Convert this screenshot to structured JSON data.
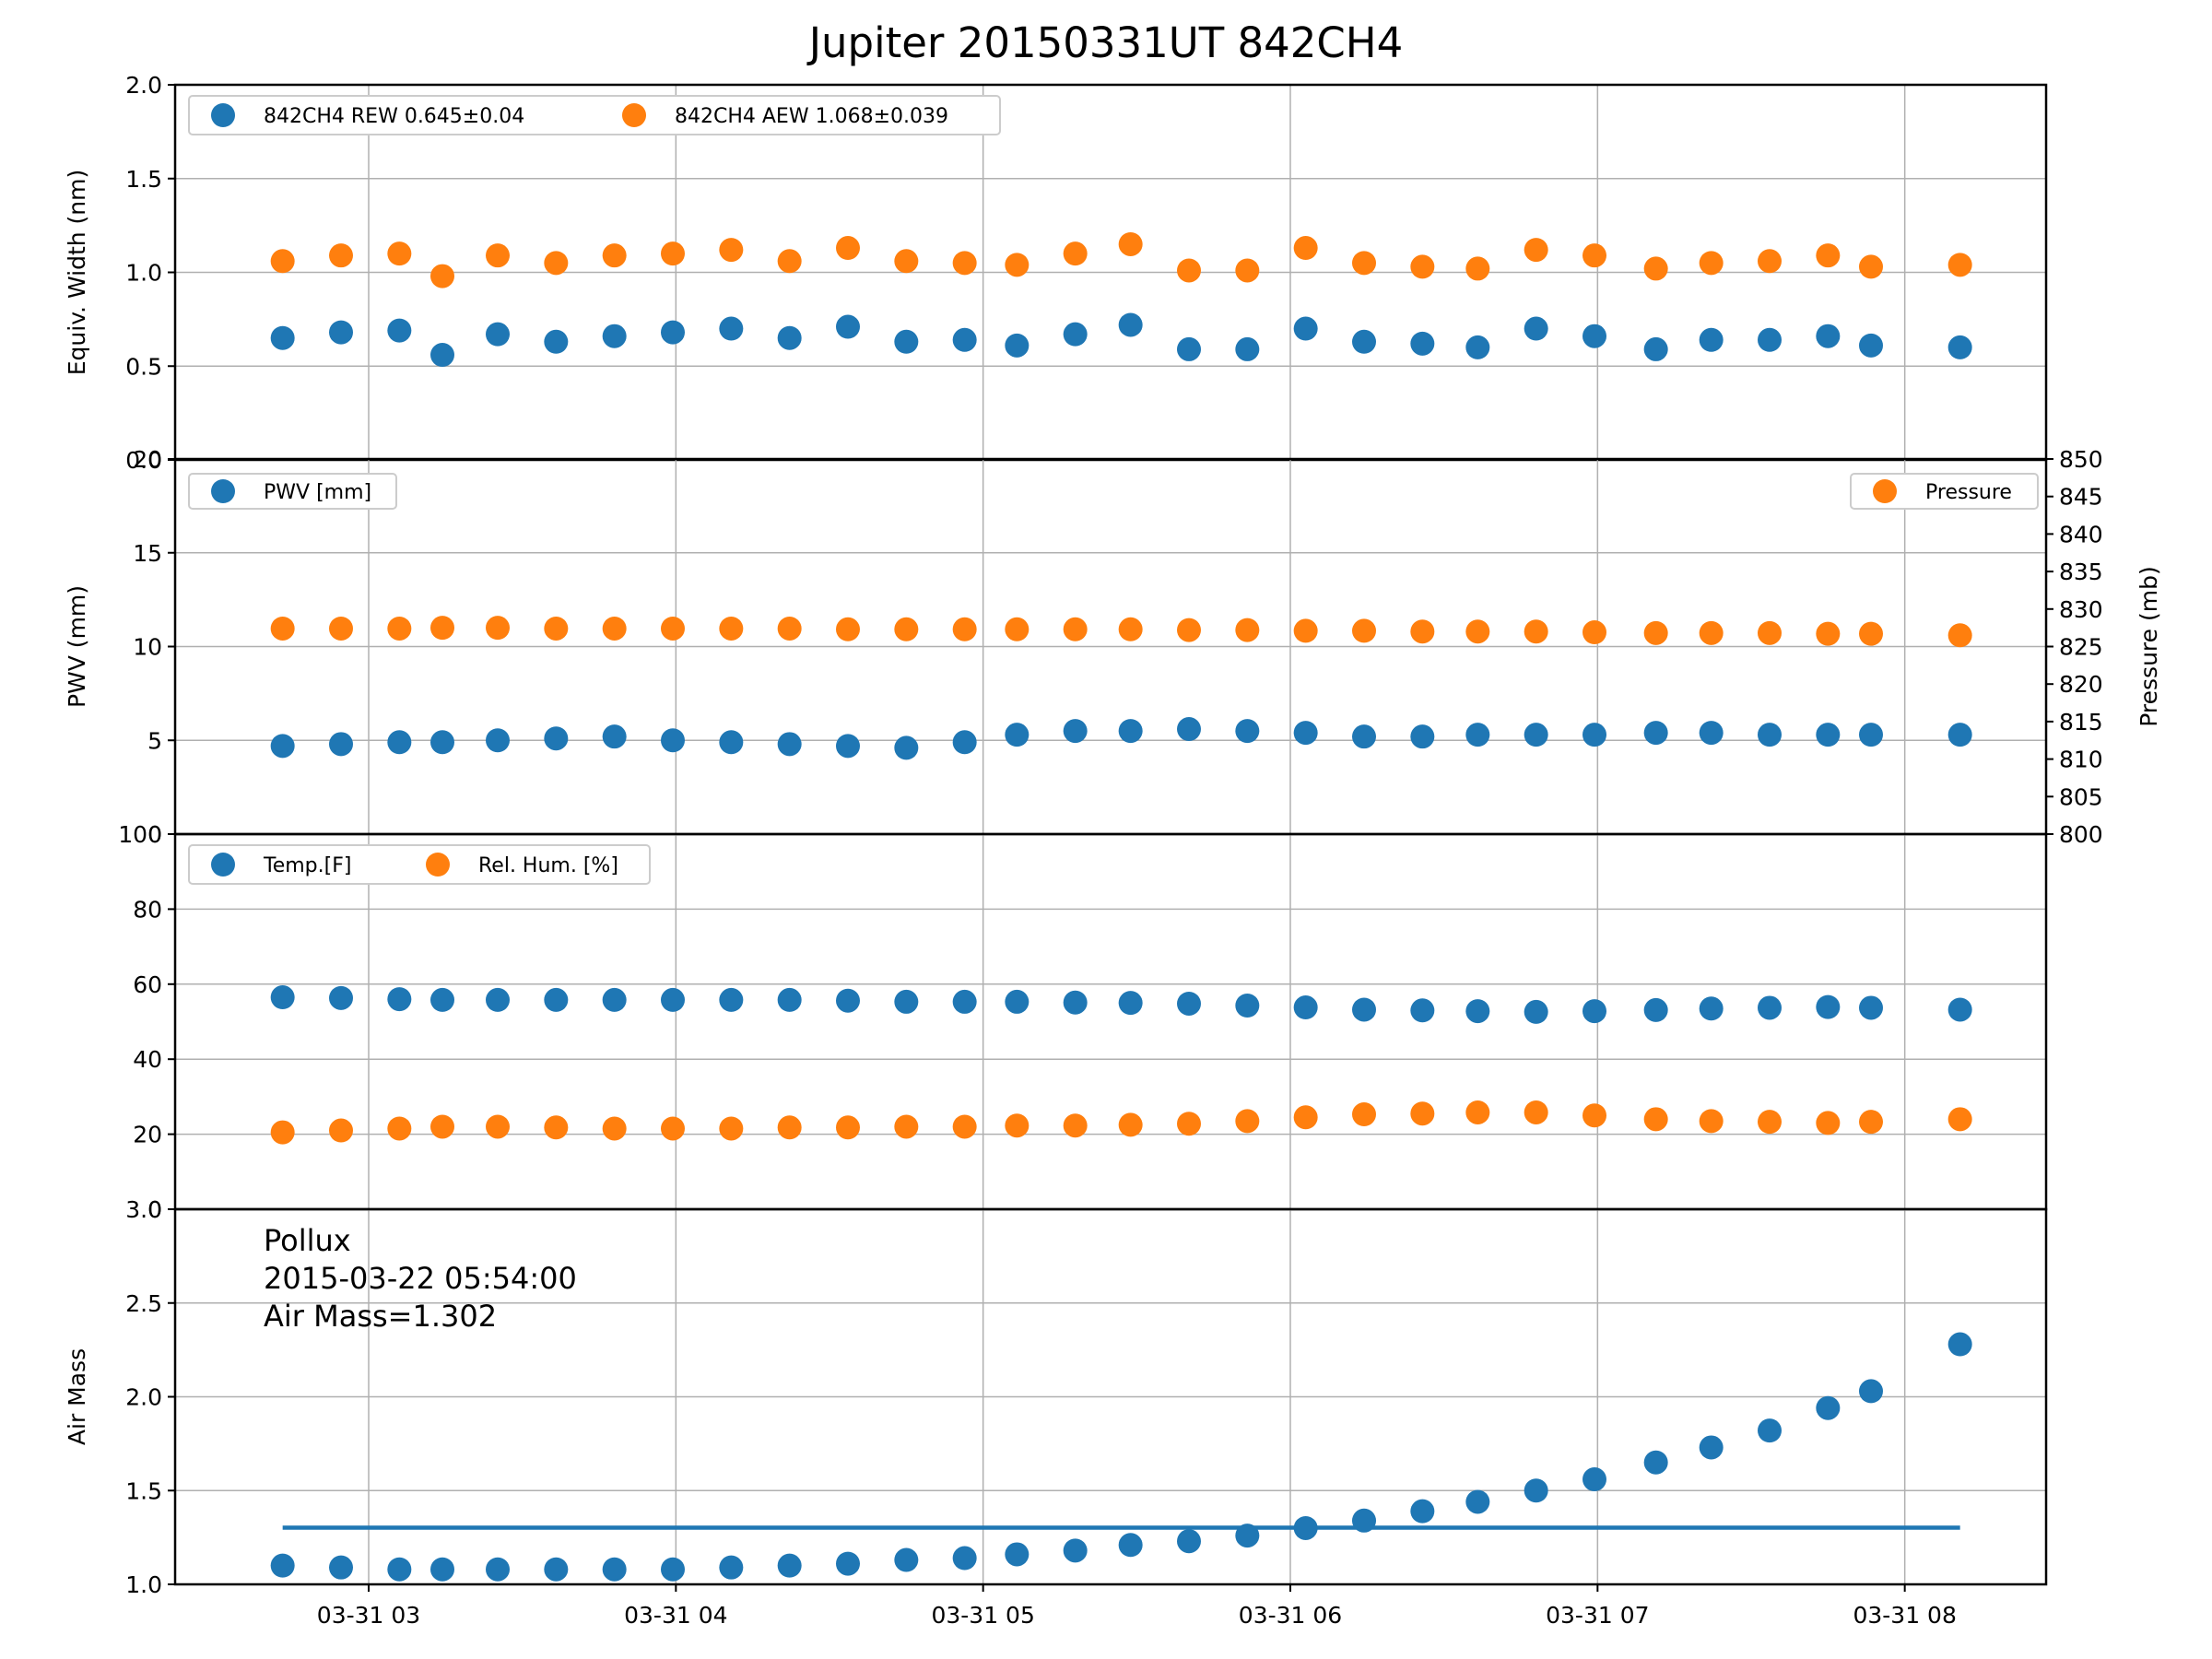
{
  "title": "Jupiter 20150331UT 842CH4",
  "colors": {
    "blue": "#1f77b4",
    "orange": "#ff7f0e"
  },
  "chart_data": {
    "type": "scatter",
    "x_ticks": [
      "03-31 03",
      "03-31 04",
      "03-31 05",
      "03-31 06",
      "03-31 07",
      "03-31 08"
    ],
    "x_hours": [
      2.72,
      2.91,
      3.1,
      3.24,
      3.42,
      3.61,
      3.8,
      3.99,
      4.18,
      4.37,
      4.56,
      4.75,
      4.94,
      5.11,
      5.3,
      5.48,
      5.67,
      5.86,
      6.05,
      6.24,
      6.43,
      6.61,
      6.8,
      6.99,
      7.19,
      7.37,
      7.56,
      7.75,
      7.89,
      8.18
    ],
    "x_range_hours": [
      2.37,
      8.46
    ],
    "panels": [
      {
        "ylabel": "Equiv. Width (nm)",
        "ylim": [
          0.0,
          2.0
        ],
        "yticks": [
          "0.0",
          "0.5",
          "1.0",
          "1.5",
          "2.0"
        ],
        "legend": "upper-left",
        "series": [
          {
            "name": "842CH4 REW 0.645±0.04",
            "color": "#1f77b4",
            "y": [
              0.65,
              0.68,
              0.69,
              0.56,
              0.67,
              0.63,
              0.66,
              0.68,
              0.7,
              0.65,
              0.71,
              0.63,
              0.64,
              0.61,
              0.67,
              0.72,
              0.59,
              0.59,
              0.7,
              0.63,
              0.62,
              0.6,
              0.7,
              0.66,
              0.59,
              0.64,
              0.64,
              0.66,
              0.61,
              0.6
            ]
          },
          {
            "name": "842CH4 AEW 1.068±0.039",
            "color": "#ff7f0e",
            "y": [
              1.06,
              1.09,
              1.1,
              0.98,
              1.09,
              1.05,
              1.09,
              1.1,
              1.12,
              1.06,
              1.13,
              1.06,
              1.05,
              1.04,
              1.1,
              1.15,
              1.01,
              1.01,
              1.13,
              1.05,
              1.03,
              1.02,
              1.12,
              1.09,
              1.02,
              1.05,
              1.06,
              1.09,
              1.03,
              1.04
            ]
          }
        ]
      },
      {
        "ylabel": "PWV (mm)",
        "ylim": [
          0,
          20
        ],
        "yticks": [
          "0",
          "5",
          "10",
          "15",
          "20"
        ],
        "y2label": "Pressure (mb)",
        "y2lim": [
          800,
          850
        ],
        "y2ticks": [
          "800",
          "805",
          "810",
          "815",
          "820",
          "825",
          "830",
          "835",
          "840",
          "845",
          "850"
        ],
        "legend": "upper-left / upper-right",
        "series": [
          {
            "name": "PWV [mm]",
            "color": "#1f77b4",
            "axis": "left",
            "y": [
              4.7,
              4.8,
              4.9,
              4.9,
              5.0,
              5.1,
              5.2,
              5.0,
              4.9,
              4.8,
              4.7,
              4.6,
              4.9,
              5.3,
              5.5,
              5.5,
              5.6,
              5.5,
              5.4,
              5.2,
              5.2,
              5.3,
              5.3,
              5.3,
              5.4,
              5.4,
              5.3,
              5.3,
              5.3,
              5.3
            ]
          },
          {
            "name": "Pressure",
            "color": "#ff7f0e",
            "axis": "right",
            "y": [
              827.4,
              827.4,
              827.4,
              827.5,
              827.5,
              827.4,
              827.4,
              827.4,
              827.4,
              827.4,
              827.3,
              827.3,
              827.3,
              827.3,
              827.3,
              827.3,
              827.2,
              827.2,
              827.1,
              827.1,
              827.0,
              827.0,
              827.0,
              826.9,
              826.8,
              826.8,
              826.8,
              826.7,
              826.7,
              826.5
            ]
          }
        ]
      },
      {
        "ylabel": "",
        "ylim": [
          0,
          100
        ],
        "yticks": [
          "0",
          "20",
          "40",
          "60",
          "80",
          "100"
        ],
        "legend": "upper-left",
        "series": [
          {
            "name": "Temp.[F]",
            "color": "#1f77b4",
            "y": [
              56.5,
              56.3,
              56.0,
              55.8,
              55.8,
              55.8,
              55.8,
              55.8,
              55.8,
              55.8,
              55.6,
              55.3,
              55.3,
              55.3,
              55.1,
              55.0,
              54.8,
              54.3,
              53.8,
              53.2,
              53.0,
              52.8,
              52.6,
              52.8,
              53.1,
              53.5,
              53.7,
              53.9,
              53.7,
              53.2
            ]
          },
          {
            "name": "Rel. Hum. [%]",
            "color": "#ff7f0e",
            "y": [
              20.5,
              21.0,
              21.5,
              22.0,
              22.0,
              21.8,
              21.5,
              21.5,
              21.5,
              21.8,
              21.8,
              22.0,
              22.0,
              22.3,
              22.3,
              22.5,
              22.8,
              23.5,
              24.5,
              25.3,
              25.5,
              25.8,
              25.8,
              25.0,
              24.0,
              23.5,
              23.3,
              23.0,
              23.3,
              24.0
            ]
          }
        ]
      },
      {
        "ylabel": "Air Mass",
        "ylim": [
          1.0,
          3.0
        ],
        "yticks": [
          "1.0",
          "1.5",
          "2.0",
          "2.5",
          "3.0"
        ],
        "annotation": [
          "Pollux",
          "2015-03-22 05:54:00",
          "Air Mass=1.302"
        ],
        "reference_line": 1.302,
        "series": [
          {
            "name": "",
            "color": "#1f77b4",
            "y": [
              1.1,
              1.09,
              1.08,
              1.08,
              1.08,
              1.08,
              1.08,
              1.08,
              1.09,
              1.1,
              1.11,
              1.13,
              1.14,
              1.16,
              1.18,
              1.21,
              1.23,
              1.26,
              1.3,
              1.34,
              1.39,
              1.44,
              1.5,
              1.56,
              1.65,
              1.73,
              1.82,
              1.94,
              2.03,
              2.28
            ]
          }
        ]
      }
    ]
  }
}
